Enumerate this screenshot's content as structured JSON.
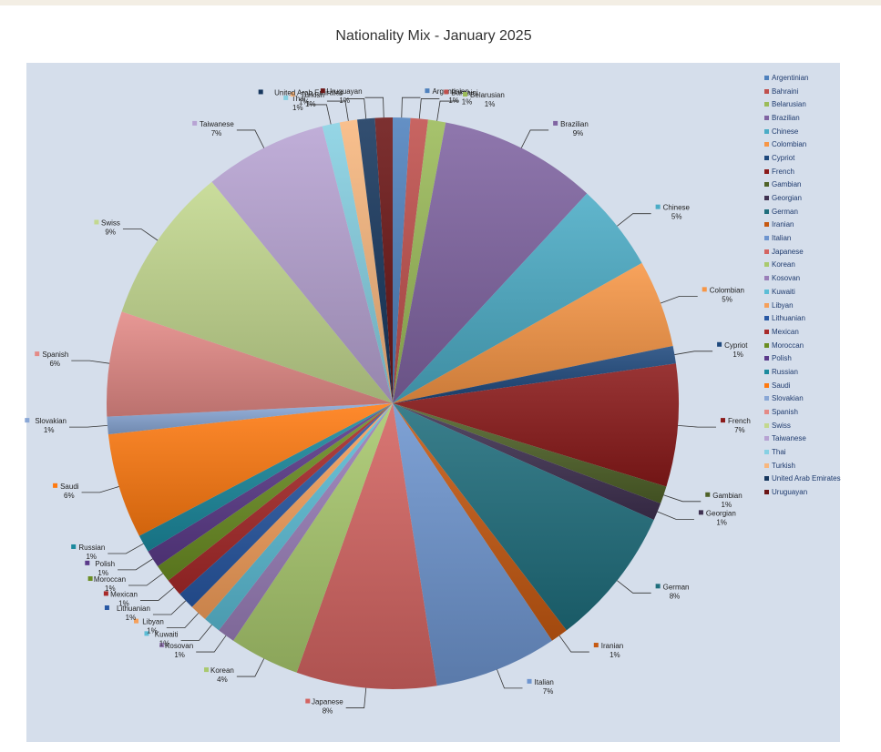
{
  "chart_data": {
    "type": "pie",
    "title": "Nationality Mix - January 2025",
    "legend_position": "right",
    "slices": [
      {
        "label": "Argentinian",
        "value": 1,
        "color": "#4f81bd"
      },
      {
        "label": "Bahraini",
        "value": 1,
        "color": "#c0504d"
      },
      {
        "label": "Belarusian",
        "value": 1,
        "color": "#9bbb59"
      },
      {
        "label": "Brazilian",
        "value": 9,
        "color": "#8064a2"
      },
      {
        "label": "Chinese",
        "value": 5,
        "color": "#4bacc6"
      },
      {
        "label": "Colombian",
        "value": 5,
        "color": "#f79646"
      },
      {
        "label": "Cypriot",
        "value": 1,
        "color": "#1f497d"
      },
      {
        "label": "French",
        "value": 7,
        "color": "#8b1a1a"
      },
      {
        "label": "Gambian",
        "value": 1,
        "color": "#4f6228"
      },
      {
        "label": "Georgian",
        "value": 1,
        "color": "#3f3151"
      },
      {
        "label": "German",
        "value": 8,
        "color": "#1f6e7c"
      },
      {
        "label": "Iranian",
        "value": 1,
        "color": "#c65911"
      },
      {
        "label": "Italian",
        "value": 7,
        "color": "#6e95cf"
      },
      {
        "label": "Japanese",
        "value": 8,
        "color": "#d46461"
      },
      {
        "label": "Korean",
        "value": 4,
        "color": "#a9c96e"
      },
      {
        "label": "Kosovan",
        "value": 1,
        "color": "#9a7fb9"
      },
      {
        "label": "Kuwaiti",
        "value": 1,
        "color": "#5cbdd6"
      },
      {
        "label": "Libyan",
        "value": 1,
        "color": "#f5a05b"
      },
      {
        "label": "Lithuanian",
        "value": 1,
        "color": "#2858a4"
      },
      {
        "label": "Mexican",
        "value": 1,
        "color": "#a82a2a"
      },
      {
        "label": "Moroccan",
        "value": 1,
        "color": "#6b8e23"
      },
      {
        "label": "Polish",
        "value": 1,
        "color": "#5b3a8a"
      },
      {
        "label": "Russian",
        "value": 1,
        "color": "#1b8a9e"
      },
      {
        "label": "Saudi",
        "value": 6,
        "color": "#ff7a10"
      },
      {
        "label": "Slovakian",
        "value": 1,
        "color": "#89a7d6"
      },
      {
        "label": "Spanish",
        "value": 6,
        "color": "#e48a86"
      },
      {
        "label": "Swiss",
        "value": 9,
        "color": "#c3d88f"
      },
      {
        "label": "Taiwanese",
        "value": 7,
        "color": "#b7a3d3"
      },
      {
        "label": "Thai",
        "value": 1,
        "color": "#86d0e3"
      },
      {
        "label": "Turkish",
        "value": 1,
        "color": "#f8b77f"
      },
      {
        "label": "United Arab Emirates",
        "value": 1,
        "color": "#17375e"
      },
      {
        "label": "Uruguayan",
        "value": 1,
        "color": "#6b1515"
      }
    ]
  }
}
